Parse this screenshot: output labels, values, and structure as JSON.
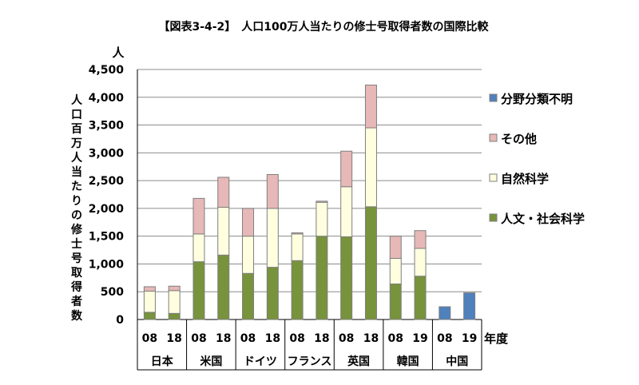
{
  "chart_data": {
    "type": "bar",
    "stacked": true,
    "title": "【図表3-4-2】　人口100万人当たりの修士号取得者数の国際比較",
    "ylabel": "人口百万人当たりの修士号取得者数",
    "yunit": "人",
    "xunit": "年度",
    "ylim": [
      0,
      4500
    ],
    "yticks": [
      0,
      500,
      1000,
      1500,
      2000,
      2500,
      3000,
      3500,
      4000,
      4500
    ],
    "ytick_labels": [
      "0",
      "500",
      "1,000",
      "1,500",
      "2,000",
      "2,500",
      "3,000",
      "3,500",
      "4,000",
      "4,500"
    ],
    "grid": true,
    "legend_position": "right",
    "groups": [
      {
        "name": "日本",
        "years": [
          "08",
          "18"
        ]
      },
      {
        "name": "米国",
        "years": [
          "08",
          "18"
        ]
      },
      {
        "name": "ドイツ",
        "years": [
          "08",
          "18"
        ]
      },
      {
        "name": "フランス",
        "years": [
          "08",
          "18"
        ]
      },
      {
        "name": "英国",
        "years": [
          "08",
          "18"
        ]
      },
      {
        "name": "韓国",
        "years": [
          "08",
          "19"
        ]
      },
      {
        "name": "中国",
        "years": [
          "08",
          "19"
        ]
      }
    ],
    "series": [
      {
        "name": "人文・社会科学",
        "color": "#77933c",
        "values": [
          130,
          110,
          1040,
          1160,
          830,
          940,
          1060,
          1500,
          1490,
          2030,
          640,
          780,
          0,
          0
        ]
      },
      {
        "name": "自然科学",
        "color": "#ffffe0",
        "values": [
          380,
          410,
          500,
          860,
          670,
          1060,
          480,
          610,
          900,
          1420,
          460,
          500,
          0,
          0
        ]
      },
      {
        "name": "その他",
        "color": "#e6b8b7",
        "values": [
          80,
          80,
          640,
          540,
          500,
          610,
          20,
          20,
          640,
          770,
          400,
          320,
          0,
          0
        ]
      },
      {
        "name": "分野分類不明",
        "color": "#4f81bd",
        "values": [
          0,
          0,
          0,
          0,
          0,
          0,
          0,
          0,
          0,
          0,
          0,
          0,
          230,
          480
        ]
      }
    ],
    "legend_order": [
      "分野分類不明",
      "その他",
      "自然科学",
      "人文・社会科学"
    ]
  }
}
